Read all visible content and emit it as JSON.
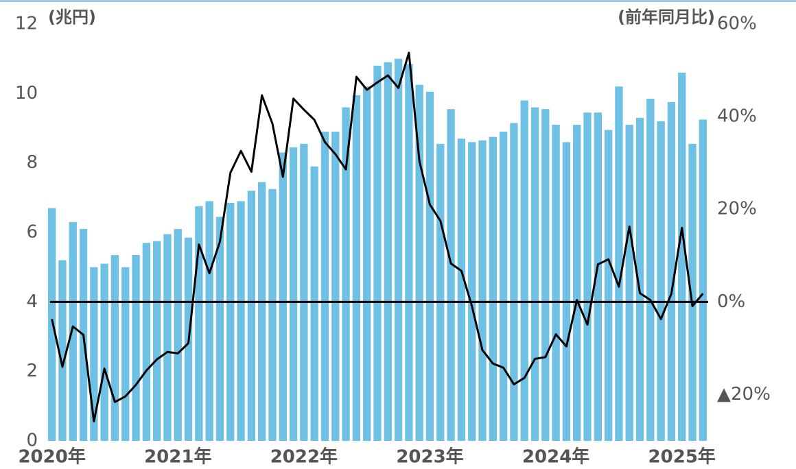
{
  "chart_data": {
    "type": "bar_line",
    "y_label": "(兆円)",
    "y2_label": "(前年同月比)",
    "categories": [
      "2020年",
      null,
      null,
      null,
      null,
      null,
      null,
      null,
      null,
      null,
      null,
      null,
      "2021年",
      null,
      null,
      null,
      null,
      null,
      null,
      null,
      null,
      null,
      null,
      null,
      "2022年",
      null,
      null,
      null,
      null,
      null,
      null,
      null,
      null,
      null,
      null,
      null,
      "2023年",
      null,
      null,
      null,
      null,
      null,
      null,
      null,
      null,
      null,
      null,
      null,
      "2024年",
      null,
      null,
      null,
      null,
      null,
      null,
      null,
      null,
      null,
      null,
      null,
      "2025年",
      null,
      null
    ],
    "series": [
      {
        "kind": "bar",
        "color": "#6ec1e4",
        "values": [
          6.7,
          5.2,
          6.3,
          6.1,
          5.0,
          5.1,
          5.35,
          5.0,
          5.35,
          5.7,
          5.75,
          5.95,
          6.1,
          5.85,
          6.75,
          6.9,
          6.45,
          6.85,
          6.9,
          7.2,
          7.45,
          7.25,
          8.3,
          8.45,
          8.55,
          7.9,
          8.9,
          8.9,
          9.6,
          9.95,
          10.2,
          10.8,
          10.9,
          11.0,
          10.85,
          10.25,
          10.05,
          8.55,
          9.55,
          8.7,
          8.6,
          8.65,
          8.75,
          8.9,
          9.15,
          9.8,
          9.6,
          9.55,
          9.1,
          8.6,
          9.1,
          9.45,
          9.45,
          8.95,
          10.2,
          9.1,
          9.3,
          9.85,
          9.2,
          9.75,
          10.6,
          8.55,
          9.25
        ]
      },
      {
        "kind": "line",
        "axis": "y2",
        "color": "#000000",
        "values": [
          -3.7,
          -14,
          -5.3,
          -7.1,
          -25.8,
          -14.4,
          -21.6,
          -20.4,
          -17.9,
          -14.8,
          -12.4,
          -10.8,
          -11.1,
          -8.9,
          12.4,
          6.2,
          13,
          27.9,
          32.6,
          28.1,
          44.6,
          38.5,
          27,
          43.9,
          41.5,
          39.3,
          34.5,
          31.9,
          28.6,
          48.6,
          45.8,
          47.4,
          48.9,
          46.2,
          53.8,
          30.4,
          21,
          17.5,
          8.3,
          6.7,
          -0.9,
          -10.4,
          -13.3,
          -14.2,
          -17.8,
          -16.4,
          -12.3,
          -11.9,
          -7,
          -9.6,
          0.4,
          -4.9,
          8.1,
          9.2,
          3.3,
          16.3,
          1.9,
          0.4,
          -3.7,
          1.8,
          16,
          -0.9,
          1.8
        ]
      }
    ],
    "ylim": [
      0,
      12
    ],
    "yticks": [
      0,
      2,
      4,
      6,
      8,
      10,
      12
    ],
    "y2lim": [
      -30,
      60
    ],
    "y2ticks": [
      {
        "value": -20,
        "label": "▲20%"
      },
      {
        "value": 0,
        "label": "0%"
      },
      {
        "value": 20,
        "label": "20%"
      },
      {
        "value": 40,
        "label": "40%"
      },
      {
        "value": 60,
        "label": "60%"
      }
    ],
    "zero_line": 0
  }
}
